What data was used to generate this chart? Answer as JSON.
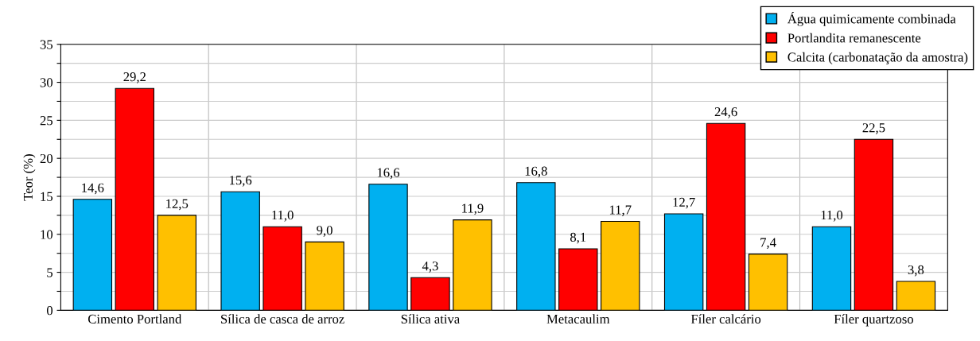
{
  "chart_data": {
    "type": "bar",
    "ylabel": "Teor (%)",
    "categories": [
      "Cimento Portland",
      "Sílica de casca de arroz",
      "Sílica ativa",
      "Metacaulim",
      "Fíler calcário",
      "Fíler quartzoso"
    ],
    "series": [
      {
        "name": "Água quimicamente combinada",
        "color": "#00b0f0",
        "values": [
          14.6,
          15.6,
          16.6,
          16.8,
          12.7,
          11.0
        ],
        "value_labels": [
          "14,6",
          "15,6",
          "16,6",
          "16,8",
          "12,7",
          "11,0"
        ]
      },
      {
        "name": "Portlandita remanescente",
        "color": "#ff0000",
        "values": [
          29.2,
          11.0,
          4.3,
          8.1,
          24.6,
          22.5
        ],
        "value_labels": [
          "29,2",
          "11,0",
          "4,3",
          "8,1",
          "24,6",
          "22,5"
        ]
      },
      {
        "name": "Calcita (carbonatação da amostra)",
        "color": "#ffc000",
        "values": [
          12.5,
          9.0,
          11.9,
          11.7,
          7.4,
          3.8
        ],
        "value_labels": [
          "12,5",
          "9,0",
          "11,9",
          "11,7",
          "7,4",
          "3,8"
        ]
      }
    ],
    "ylim": [
      0,
      35
    ],
    "yticks": [
      0,
      {
        "value": 2.5,
        "label": null
      },
      5,
      {
        "value": 7.5,
        "label": null
      },
      10,
      {
        "value": 12.5,
        "label": null
      },
      15,
      {
        "value": 17.5,
        "label": null
      },
      20,
      {
        "value": 22.5,
        "label": null
      },
      25,
      {
        "value": 27.5,
        "label": null
      },
      30,
      {
        "value": 32.5,
        "label": null
      },
      35
    ],
    "grid": "y",
    "legend": "top right"
  }
}
